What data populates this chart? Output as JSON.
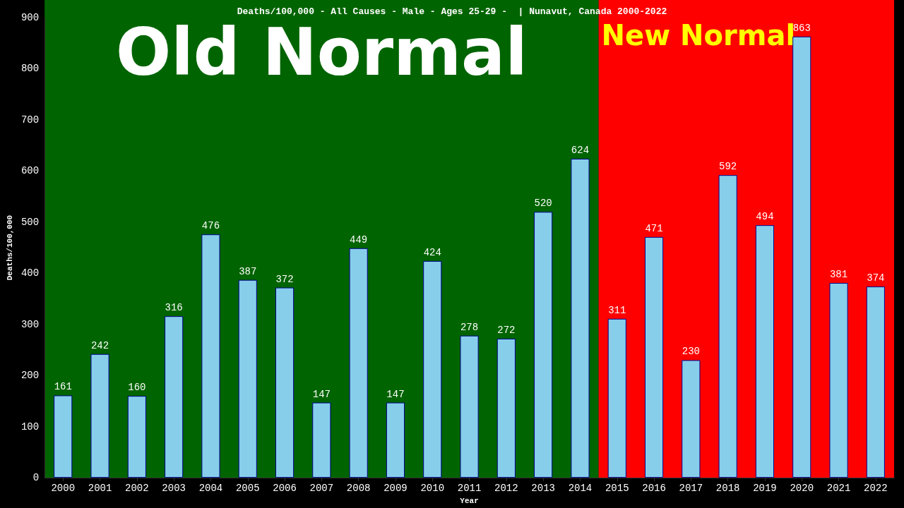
{
  "chart_data": {
    "type": "bar",
    "title": "Deaths/100,000 - All Causes - Male - Ages 25-29 -  | Nunavut, Canada 2000-2022",
    "xlabel": "Year",
    "ylabel": "Deaths/100,000",
    "categories": [
      "2000",
      "2001",
      "2002",
      "2003",
      "2004",
      "2005",
      "2006",
      "2007",
      "2008",
      "2009",
      "2010",
      "2011",
      "2012",
      "2013",
      "2014",
      "2015",
      "2016",
      "2017",
      "2018",
      "2019",
      "2020",
      "2021",
      "2022"
    ],
    "values": [
      161,
      242,
      160,
      316,
      476,
      387,
      372,
      147,
      449,
      147,
      424,
      278,
      272,
      520,
      624,
      311,
      471,
      230,
      592,
      494,
      863,
      381,
      374
    ],
    "color": "#87ceeb",
    "ylim": [
      0,
      900
    ],
    "yticks": [
      0,
      100,
      200,
      300,
      400,
      500,
      600,
      700,
      800,
      900
    ],
    "grid": false,
    "data_labels": true,
    "bands": [
      {
        "axis": "x",
        "from": "2000",
        "to": "2014",
        "label": "Old Normal",
        "color": "#006400"
      },
      {
        "axis": "x",
        "from": "2015",
        "to": "2022",
        "label": "New Normal",
        "color": "#ff0000"
      }
    ]
  }
}
